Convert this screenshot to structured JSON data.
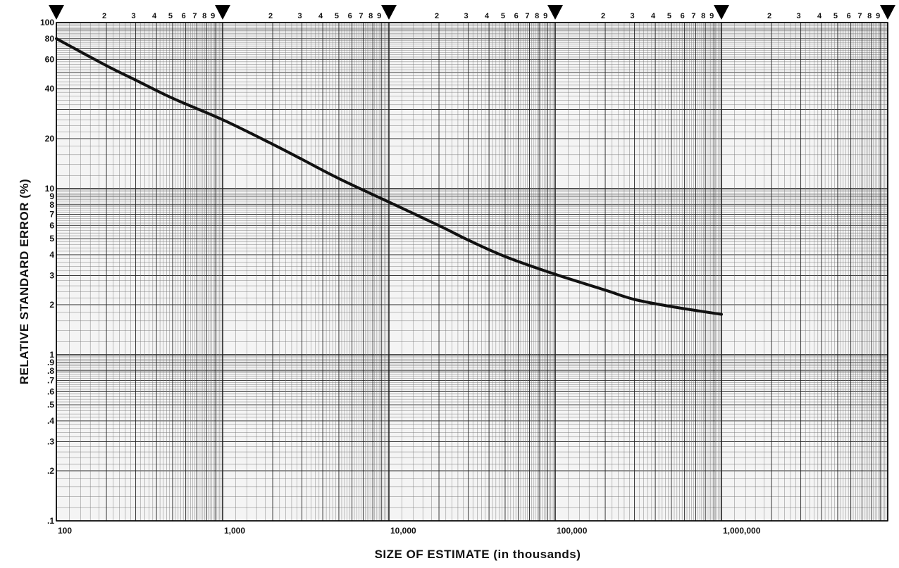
{
  "chart_data": {
    "type": "line",
    "title": "",
    "xlabel": "SIZE OF ESTIMATE (in thousands)",
    "ylabel": "RELATIVE STANDARD ERROR (%)",
    "x_scale": "log",
    "y_scale": "log",
    "xlim": [
      100,
      10000000
    ],
    "ylim": [
      0.1,
      100
    ],
    "grid": true,
    "x_tick_labels": [
      {
        "value": 100,
        "label": "100"
      },
      {
        "value": 1000,
        "label": "1,000"
      },
      {
        "value": 10000,
        "label": "10,000"
      },
      {
        "value": 100000,
        "label": "100,000"
      },
      {
        "value": 1000000,
        "label": "1,000,000"
      }
    ],
    "y_tick_labels": [
      {
        "value": 100,
        "label": "100"
      },
      {
        "value": 80,
        "label": "80"
      },
      {
        "value": 60,
        "label": "60"
      },
      {
        "value": 40,
        "label": "40"
      },
      {
        "value": 20,
        "label": "20"
      },
      {
        "value": 10,
        "label": "10"
      },
      {
        "value": 9,
        "label": "9"
      },
      {
        "value": 8,
        "label": "8"
      },
      {
        "value": 7,
        "label": "7"
      },
      {
        "value": 6,
        "label": "6"
      },
      {
        "value": 5,
        "label": "5"
      },
      {
        "value": 4,
        "label": "4"
      },
      {
        "value": 3,
        "label": "3"
      },
      {
        "value": 2,
        "label": "2"
      },
      {
        "value": 1,
        "label": "1"
      },
      {
        "value": 0.9,
        "label": ".9"
      },
      {
        "value": 0.8,
        "label": ".8"
      },
      {
        "value": 0.7,
        "label": ".7"
      },
      {
        "value": 0.6,
        "label": ".6"
      },
      {
        "value": 0.5,
        "label": ".5"
      },
      {
        "value": 0.4,
        "label": ".4"
      },
      {
        "value": 0.3,
        "label": ".3"
      },
      {
        "value": 0.2,
        "label": ".2"
      },
      {
        "value": 0.1,
        "label": ".1"
      }
    ],
    "top_minor_labels": [
      "2",
      "3",
      "4",
      "5",
      "6",
      "7",
      "8",
      "9"
    ],
    "series": [
      {
        "x": [
          100,
          200,
          300,
          500,
          1000,
          2000,
          3000,
          5000,
          10000,
          20000,
          30000,
          50000,
          100000,
          200000,
          300000,
          500000,
          1000000
        ],
        "y": [
          80,
          55,
          45,
          35,
          26,
          18.5,
          15,
          11.5,
          8.3,
          6,
          4.9,
          3.9,
          3.05,
          2.45,
          2.15,
          1.95,
          1.75
        ]
      }
    ],
    "colors": {
      "line": "#111111",
      "grid": "#777777",
      "major_grid": "#222222",
      "marker": "#000000"
    }
  }
}
